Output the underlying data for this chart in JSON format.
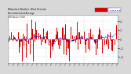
{
  "title": "Milwaukee Weather  Wind Direction",
  "subtitle": "Normalized and Average",
  "subtitle2": "(24 Hours) (Old)",
  "ylim": [
    -5.5,
    5.5
  ],
  "yticks": [
    -4,
    -2,
    0,
    2,
    4
  ],
  "ytick_labels": [
    "5",
    "4",
    "2",
    "1",
    "5"
  ],
  "bg_color": "#d8d8d8",
  "plot_bg": "#ffffff",
  "bar_color": "#dd0000",
  "line_color": "#0000cc",
  "n_points": 350,
  "seed": 7,
  "bar_width": 0.85
}
